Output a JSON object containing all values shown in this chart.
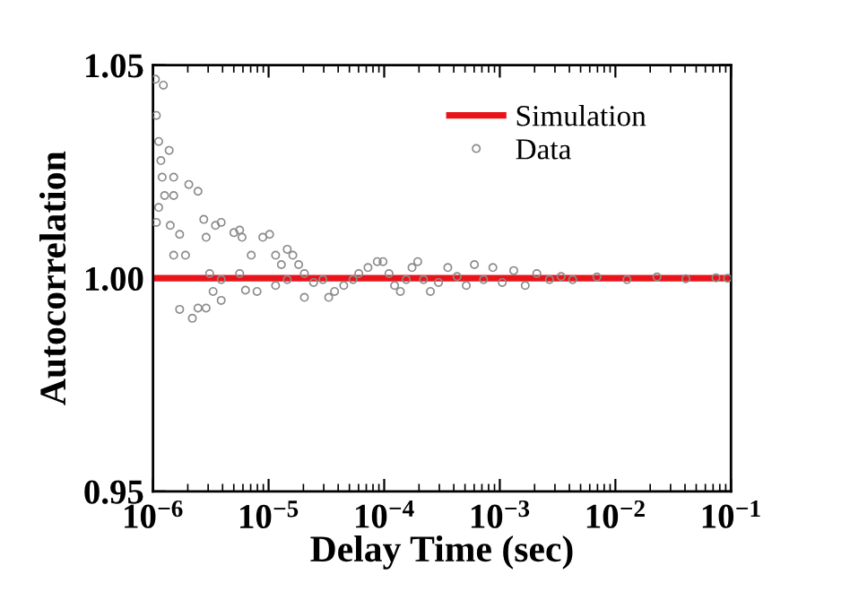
{
  "chart_data": {
    "type": "scatter",
    "xlabel": "Delay Time (sec)",
    "ylabel": "Autocorrelation",
    "log": "x",
    "xlim": [
      1e-06,
      0.1
    ],
    "xticks": [
      {
        "value": 1e-06,
        "label": "10$^{−6}$"
      },
      {
        "value": 1e-05,
        "label": "10$^{−5}$"
      },
      {
        "value": 0.0001,
        "label": "10$^{−4}$"
      },
      {
        "value": 0.001,
        "label": "10$^{−3}$"
      },
      {
        "value": 0.01,
        "label": "10$^{−2}$"
      },
      {
        "value": 0.1,
        "label": "10$^{−1}$"
      }
    ],
    "ylim": [
      0.95,
      1.05
    ],
    "yticks": [
      {
        "value": 0.95,
        "label": "0.95"
      },
      {
        "value": 1.0,
        "label": "1.00"
      },
      {
        "value": 1.05,
        "label": "1.05"
      }
    ],
    "legend": "top right",
    "series": [
      {
        "name": "Simulation",
        "type": "line",
        "color": "#e8141a",
        "line_style": "solid",
        "marker": "none",
        "x": [
          1e-06,
          0.1
        ],
        "values": [
          1.0,
          1.0
        ]
      },
      {
        "name": "Data",
        "color": "#8c8c8c",
        "marker": "circle",
        "x": [
          1.05e-06,
          1.23e-06,
          1.07e-06,
          1.12e-06,
          1.17e-06,
          1.38e-06,
          1.2e-06,
          1.51e-06,
          1.26e-06,
          1.12e-06,
          1.51e-06,
          2.04e-06,
          2.45e-06,
          1.07e-06,
          1.41e-06,
          1.7e-06,
          1.51e-06,
          1.91e-06,
          1.7e-06,
          2.19e-06,
          2.45e-06,
          2.88e-06,
          2.75e-06,
          3.47e-06,
          3.89e-06,
          2.88e-06,
          5.01e-06,
          5.62e-06,
          5.89e-06,
          3.09e-06,
          3.89e-06,
          3.31e-06,
          3.89e-06,
          5.62e-06,
          6.31e-06,
          7.94e-06,
          8.91e-06,
          1.02e-05,
          7.08e-06,
          1.15e-05,
          1.29e-05,
          1.45e-05,
          1.62e-05,
          1.15e-05,
          1.45e-05,
          1.82e-05,
          2.04e-05,
          2.04e-05,
          2.45e-05,
          2.95e-05,
          3.31e-05,
          3.72e-05,
          4.47e-05,
          5.37e-05,
          6.03e-05,
          7.24e-05,
          8.71e-05,
          9.77e-05,
          0.00011,
          0.000123,
          0.000138,
          0.000155,
          0.000174,
          0.000195,
          0.000219,
          0.000251,
          0.000295,
          0.000355,
          0.000427,
          0.000513,
          0.000603,
          0.000724,
          0.000871,
          0.00105,
          0.00132,
          0.00166,
          0.00209,
          0.00269,
          0.00339,
          0.00427,
          0.00692,
          0.0126,
          0.0229,
          0.0407,
          0.0741,
          0.0933
        ],
        "values": [
          1.0467,
          1.0453,
          1.0382,
          1.0321,
          1.0276,
          1.03,
          1.0237,
          1.0237,
          1.0194,
          1.0166,
          1.0194,
          1.022,
          1.0204,
          1.0131,
          1.0124,
          1.0103,
          1.0054,
          1.0054,
          0.9927,
          0.9906,
          0.993,
          0.993,
          1.0138,
          1.0124,
          1.0131,
          1.0096,
          1.0107,
          1.0113,
          1.0096,
          1.0011,
          0.9997,
          0.9969,
          0.9948,
          1.0011,
          0.9972,
          0.9969,
          1.0096,
          1.0103,
          1.0054,
          1.0054,
          1.0032,
          1.0068,
          1.0054,
          0.9983,
          0.9997,
          1.0032,
          1.0011,
          0.9955,
          0.999,
          0.9997,
          0.9955,
          0.9969,
          0.9983,
          0.9997,
          1.0011,
          1.0025,
          1.0039,
          1.0039,
          1.0011,
          0.9983,
          0.9969,
          0.9997,
          1.0025,
          1.0039,
          0.9997,
          0.9969,
          0.999,
          1.0025,
          1.0004,
          0.9983,
          1.0032,
          0.9997,
          1.0025,
          0.999,
          1.0018,
          0.9983,
          1.0011,
          0.9997,
          1.0004,
          0.9997,
          1.0003,
          0.9997,
          1.0003,
          0.9999,
          1.0001,
          1.0
        ]
      }
    ]
  }
}
